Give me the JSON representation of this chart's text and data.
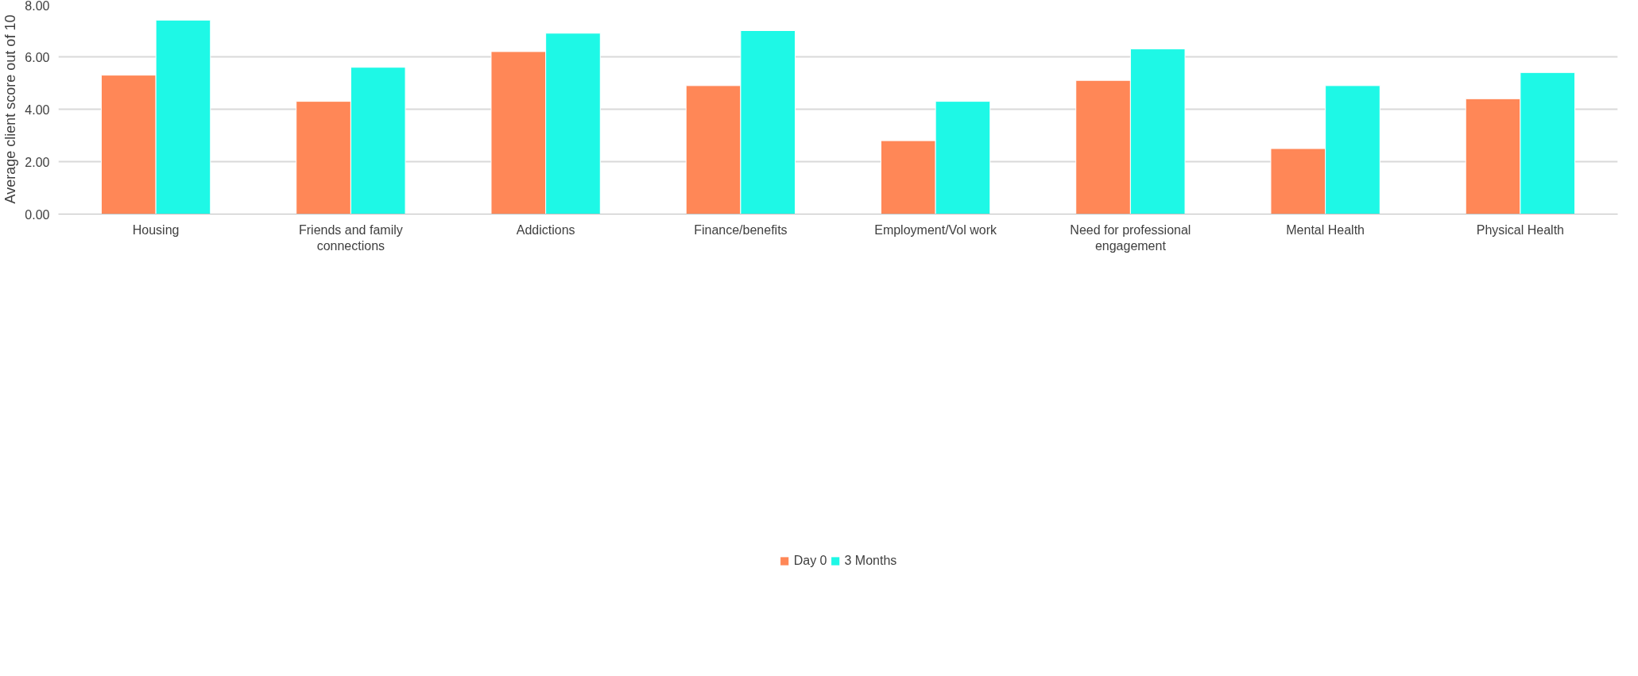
{
  "chart_data": {
    "type": "bar",
    "ylabel": "Average client score out of 10",
    "categories": [
      "Housing",
      "Friends and family connections",
      "Addictions",
      "Finance/benefits",
      "Employment/Vol work",
      "Need for professional engagement",
      "Mental Health",
      "Physical Health"
    ],
    "series": [
      {
        "name": "Day 0",
        "color": "#ff8757",
        "values": [
          5.3,
          4.3,
          6.2,
          4.9,
          2.8,
          5.1,
          2.5,
          4.4
        ]
      },
      {
        "name": "3 Months",
        "color": "#1ef8e6",
        "values": [
          7.4,
          5.6,
          6.9,
          7.0,
          4.3,
          6.3,
          4.9,
          5.4
        ]
      }
    ],
    "ylim": [
      0,
      8
    ],
    "yticks": [
      {
        "value": 0,
        "label": "0.00"
      },
      {
        "value": 2,
        "label": "2.00"
      },
      {
        "value": 4,
        "label": "4.00"
      },
      {
        "value": 6,
        "label": "6.00"
      },
      {
        "value": 8,
        "label": "8.00"
      }
    ],
    "grid": "y",
    "legend": "bottom"
  }
}
